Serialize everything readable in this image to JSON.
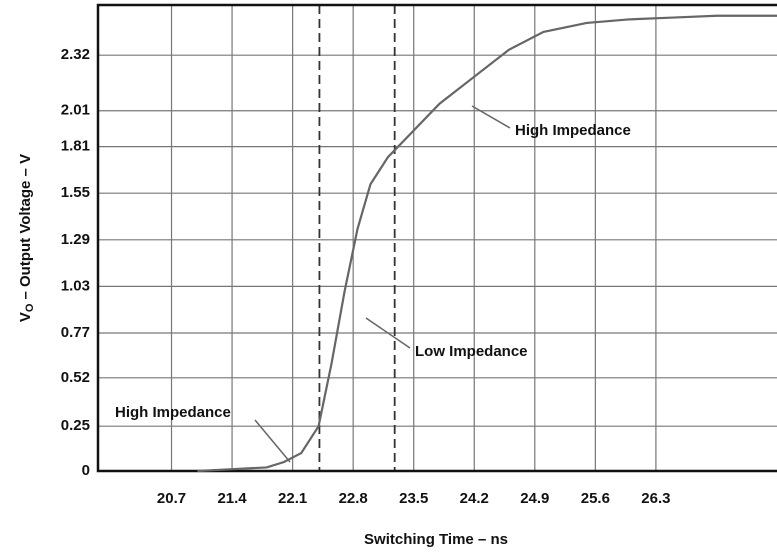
{
  "chart_data": {
    "type": "line",
    "xlabel": "Switching Time – ns",
    "ylabel": [
      "V",
      "O",
      "– Output Voltage – V"
    ],
    "series": [
      {
        "color": "#666666",
        "x": [
          21.0,
          21.4,
          21.8,
          22.0,
          22.2,
          22.4,
          22.55,
          22.7,
          22.85,
          23.0,
          23.2,
          23.5,
          23.8,
          24.2,
          24.6,
          25.0,
          25.5,
          26.0,
          26.5,
          27.0,
          27.7
        ],
        "values": [
          0,
          0.01,
          0.02,
          0.05,
          0.1,
          0.25,
          0.6,
          1.0,
          1.35,
          1.6,
          1.75,
          1.9,
          2.05,
          2.2,
          2.35,
          2.45,
          2.5,
          2.52,
          2.53,
          2.54,
          2.54
        ]
      }
    ],
    "vlines": [
      22.41,
      23.28
    ],
    "annotations": [
      "High Impedance",
      "Low Impedance",
      "High Impedance"
    ],
    "xlim": [
      19.85,
      27.7
    ],
    "xticks": [
      20.7,
      21.4,
      22.1,
      22.8,
      23.5,
      24.2,
      24.9,
      25.6,
      26.3
    ],
    "ylim": [
      0,
      2.6
    ],
    "yticks": [
      0,
      0.25,
      0.52,
      0.77,
      1.03,
      1.29,
      1.55,
      1.81,
      2.01,
      2.32
    ],
    "grid": true
  }
}
